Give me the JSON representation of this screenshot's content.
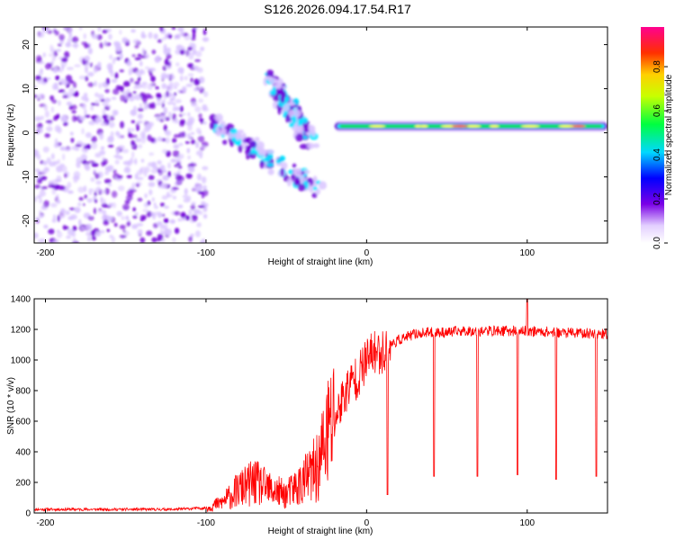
{
  "title": "S126.2026.094.17.54.R17",
  "chart_data": [
    {
      "type": "heatmap",
      "title": "S126.2026.094.17.54.R17",
      "xlabel": "Height of straight line (km)",
      "ylabel": "Frequency (Hz)",
      "xlim": [
        -207,
        150
      ],
      "ylim": [
        -25,
        24
      ],
      "xticks": [
        -200,
        -100,
        0,
        100
      ],
      "yticks": [
        -20,
        -10,
        0,
        10,
        20
      ],
      "colorbar": {
        "label": "Normalized spectral amplitude",
        "range": [
          0.0,
          0.98
        ],
        "ticks": [
          "0.0",
          "0.2",
          "0.4",
          "0.6",
          "0.8"
        ],
        "tick_values": [
          0.0,
          0.2,
          0.4,
          0.6,
          0.8
        ]
      },
      "features": [
        {
          "name": "scattered noise",
          "x_range": [
            -207,
            -100
          ],
          "freq_range": [
            -25,
            24
          ],
          "amplitude": 0.1
        },
        {
          "name": "upper branch",
          "x_start": -60,
          "x_end": -35,
          "freq_start": 12,
          "freq_end": -2,
          "amplitude": 0.3
        },
        {
          "name": "lower branch",
          "x_start": -95,
          "x_end": -30,
          "freq_start": 2,
          "freq_end": -13,
          "amplitude": 0.2
        },
        {
          "name": "stable line",
          "x_range": [
            -20,
            150
          ],
          "freq": 1.5,
          "amplitude": 0.95
        }
      ],
      "colors": {
        "low": "#d9c4ff",
        "mid": "#7000d8",
        "cyan": "#00e5ff",
        "green": "#00e000",
        "yellow": "#ffff00",
        "high": "#ff3333"
      }
    },
    {
      "type": "line",
      "xlabel": "Height of straight line (km)",
      "ylabel": "SNR (10 * v/v)",
      "xlim": [
        -207,
        150
      ],
      "ylim": [
        0,
        1400
      ],
      "xticks": [
        -200,
        -100,
        0,
        100
      ],
      "yticks": [
        0,
        200,
        400,
        600,
        800,
        1000,
        1200,
        1400
      ],
      "series": [
        {
          "name": "SNR",
          "color": "#ff0000",
          "x": [
            -207,
            -180,
            -150,
            -120,
            -100,
            -90,
            -80,
            -70,
            -60,
            -50,
            -40,
            -30,
            -25,
            -20,
            -15,
            -10,
            -5,
            0,
            5,
            10,
            15,
            20,
            25,
            30,
            40,
            50,
            60,
            80,
            100,
            120,
            150
          ],
          "values": [
            20,
            20,
            20,
            20,
            30,
            70,
            150,
            200,
            150,
            120,
            200,
            300,
            500,
            600,
            750,
            850,
            900,
            1000,
            1050,
            1050,
            1100,
            1130,
            1150,
            1170,
            1180,
            1180,
            1190,
            1190,
            1190,
            1180,
            1170
          ],
          "spikes": [
            {
              "x": 13,
              "y": 120
            },
            {
              "x": 42,
              "y": 240
            },
            {
              "x": 69,
              "y": 240
            },
            {
              "x": 94,
              "y": 250
            },
            {
              "x": 100,
              "y": 1400
            },
            {
              "x": 118,
              "y": 220
            },
            {
              "x": 143,
              "y": 240
            }
          ]
        }
      ]
    }
  ]
}
